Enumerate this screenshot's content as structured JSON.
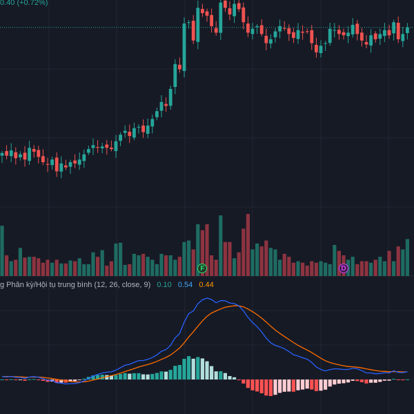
{
  "header": {
    "price_change_text": "0.40 (+0.72%)"
  },
  "macd_legend": {
    "title": "g Phân kỳ/Hội tụ trung bình (12, 26, close, 9)",
    "macd_value": "0.10",
    "signal_value": "0.54",
    "hist_value": "0.44"
  },
  "markers": [
    {
      "label": "F",
      "color": "#2ee06b",
      "bg": "#1e3b2a",
      "bar_index": 44
    },
    {
      "label": "D",
      "color": "#e040fb",
      "bg": "#3a1f45",
      "bar_index": 75
    }
  ],
  "colors": {
    "background": "#161a25",
    "grid": "#232733",
    "up": "#26a69a",
    "down": "#ef5350",
    "vol_up": "#1f6b62",
    "vol_down": "#8c3440",
    "macd_line": "#2962ff",
    "signal_line": "#ff6d00",
    "hist_up_strong": "#26a69a",
    "hist_up_weak": "#b2dfdb",
    "hist_down_strong": "#ff5252",
    "hist_down_weak": "#ffcdd2",
    "last_price_line": "#26a69a"
  },
  "chart_data": {
    "type": "candlestick",
    "last_price": 56.2,
    "price_range": [
      43.0,
      58.3
    ],
    "candles": [],
    "volume": [],
    "macd": {
      "macd": [],
      "signal": [],
      "hist": []
    }
  }
}
